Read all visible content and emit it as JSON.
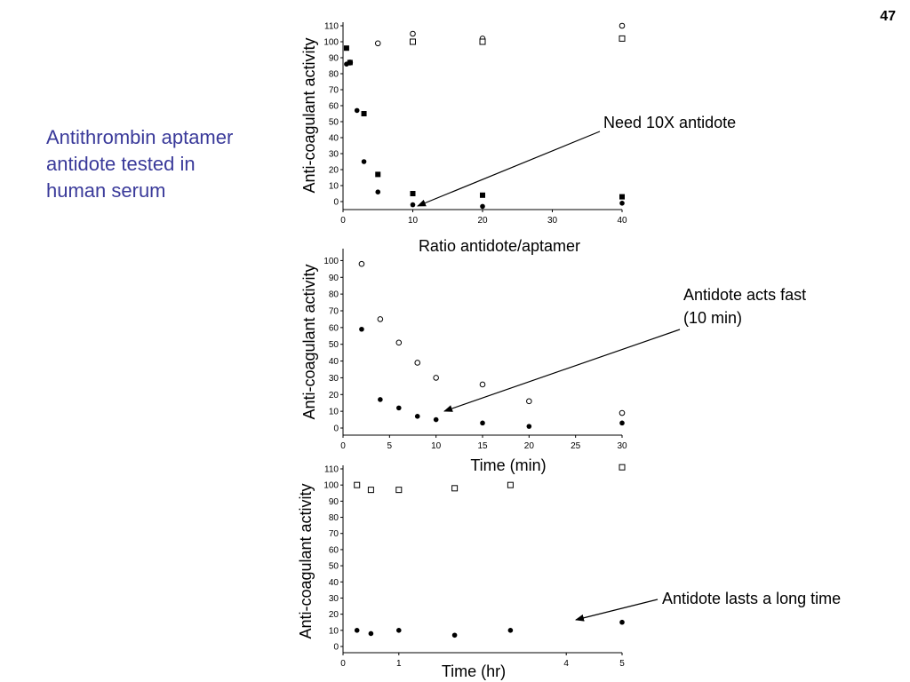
{
  "slide": {
    "number": "47",
    "caption": "Antithrombin aptamer antidote tested in human serum"
  },
  "chart_data": [
    {
      "type": "scatter",
      "title": "",
      "xlabel": "Ratio antidote/aptamer",
      "ylabel": "Anti-coagulant activity",
      "xlim": [
        0,
        40
      ],
      "ylim": [
        0,
        110
      ],
      "xticks": [
        0,
        10,
        20,
        30,
        40
      ],
      "yticks": [
        0,
        10,
        20,
        30,
        40,
        50,
        60,
        70,
        80,
        90,
        100,
        110
      ],
      "series": [
        {
          "marker": "open-circle",
          "points": [
            [
              1,
              87
            ],
            [
              5,
              99
            ],
            [
              10,
              105
            ],
            [
              20,
              102
            ],
            [
              40,
              110
            ]
          ]
        },
        {
          "marker": "open-square",
          "points": [
            [
              10,
              100
            ],
            [
              20,
              100
            ],
            [
              40,
              102
            ]
          ]
        },
        {
          "marker": "filled-square",
          "points": [
            [
              0.5,
              96
            ],
            [
              1,
              87
            ],
            [
              3,
              55
            ],
            [
              5,
              17
            ],
            [
              10,
              5
            ],
            [
              20,
              4
            ],
            [
              40,
              3
            ]
          ]
        },
        {
          "marker": "filled-circle",
          "points": [
            [
              0.5,
              86
            ],
            [
              2,
              57
            ],
            [
              3,
              25
            ],
            [
              5,
              6
            ],
            [
              10,
              -2
            ],
            [
              20,
              -3
            ],
            [
              40,
              -1
            ]
          ]
        }
      ],
      "annotation": "Need 10X antidote"
    },
    {
      "type": "scatter",
      "title": "",
      "xlabel": "Time (min)",
      "ylabel": "Anti-coagulant activity",
      "xlim": [
        0,
        30
      ],
      "ylim": [
        0,
        105
      ],
      "xticks": [
        0,
        5,
        10,
        15,
        20,
        25,
        30
      ],
      "yticks": [
        0,
        10,
        20,
        30,
        40,
        50,
        60,
        70,
        80,
        90,
        100
      ],
      "series": [
        {
          "marker": "open-circle",
          "points": [
            [
              2,
              98
            ],
            [
              4,
              65
            ],
            [
              6,
              51
            ],
            [
              8,
              39
            ],
            [
              10,
              30
            ],
            [
              15,
              26
            ],
            [
              20,
              16
            ],
            [
              30,
              9
            ]
          ]
        },
        {
          "marker": "filled-circle",
          "points": [
            [
              2,
              59
            ],
            [
              4,
              17
            ],
            [
              6,
              12
            ],
            [
              8,
              7
            ],
            [
              10,
              5
            ],
            [
              15,
              3
            ],
            [
              20,
              1
            ],
            [
              30,
              3
            ]
          ]
        }
      ],
      "annotation": "Antidote acts fast (10 min)"
    },
    {
      "type": "scatter",
      "title": "",
      "xlabel": "Time (hr)",
      "ylabel": "Anti-coagulant activity",
      "xlim": [
        0,
        5
      ],
      "ylim": [
        0,
        110
      ],
      "xticks": [
        0,
        1,
        4,
        5
      ],
      "yticks": [
        0,
        10,
        20,
        30,
        40,
        50,
        60,
        70,
        80,
        90,
        100,
        110
      ],
      "series": [
        {
          "marker": "open-square",
          "points": [
            [
              0.25,
              100
            ],
            [
              0.5,
              97
            ],
            [
              1,
              97
            ],
            [
              2,
              98
            ],
            [
              3,
              100
            ],
            [
              5,
              111
            ]
          ]
        },
        {
          "marker": "filled-circle",
          "points": [
            [
              0.25,
              10
            ],
            [
              0.5,
              8
            ],
            [
              1,
              10
            ],
            [
              2,
              7
            ],
            [
              3,
              10
            ],
            [
              5,
              15
            ]
          ]
        }
      ],
      "annotation": "Antidote lasts a long time"
    }
  ]
}
